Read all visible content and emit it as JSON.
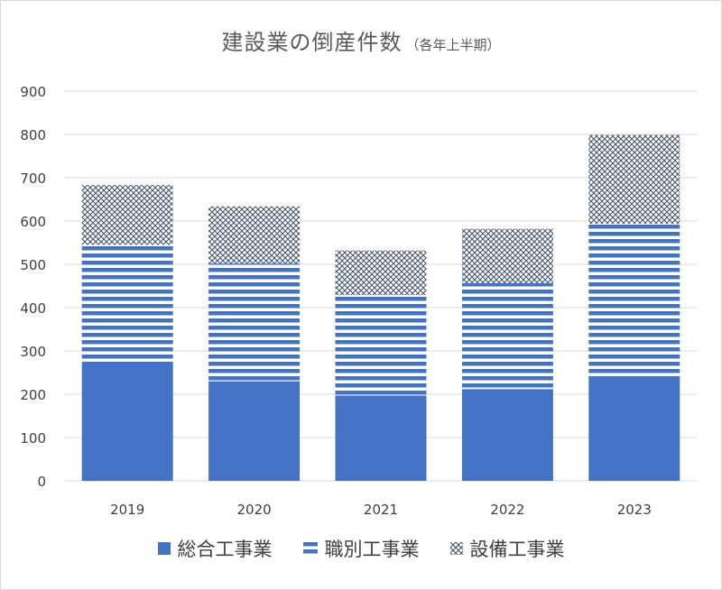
{
  "chart_data": {
    "type": "bar",
    "stacked": true,
    "title": "建設業の倒産件数",
    "subtitle": "（各年上半期）",
    "xlabel": "",
    "ylabel": "",
    "categories": [
      "2019",
      "2020",
      "2021",
      "2022",
      "2023"
    ],
    "series": [
      {
        "name": "総合工事業",
        "values": [
          275,
          230,
          197,
          212,
          242
        ],
        "color": "#4472c4",
        "pattern": "solid"
      },
      {
        "name": "職別工事業",
        "values": [
          270,
          272,
          232,
          245,
          352
        ],
        "color": "#4472c4",
        "pattern": "horizontal-stripes"
      },
      {
        "name": "設備工事業",
        "values": [
          138,
          132,
          103,
          125,
          205
        ],
        "color": "#44546a",
        "pattern": "crosshatch"
      }
    ],
    "ylim": [
      0,
      900
    ],
    "yticks": [
      0,
      100,
      200,
      300,
      400,
      500,
      600,
      700,
      800,
      900
    ],
    "grid": true,
    "legend_position": "bottom"
  }
}
